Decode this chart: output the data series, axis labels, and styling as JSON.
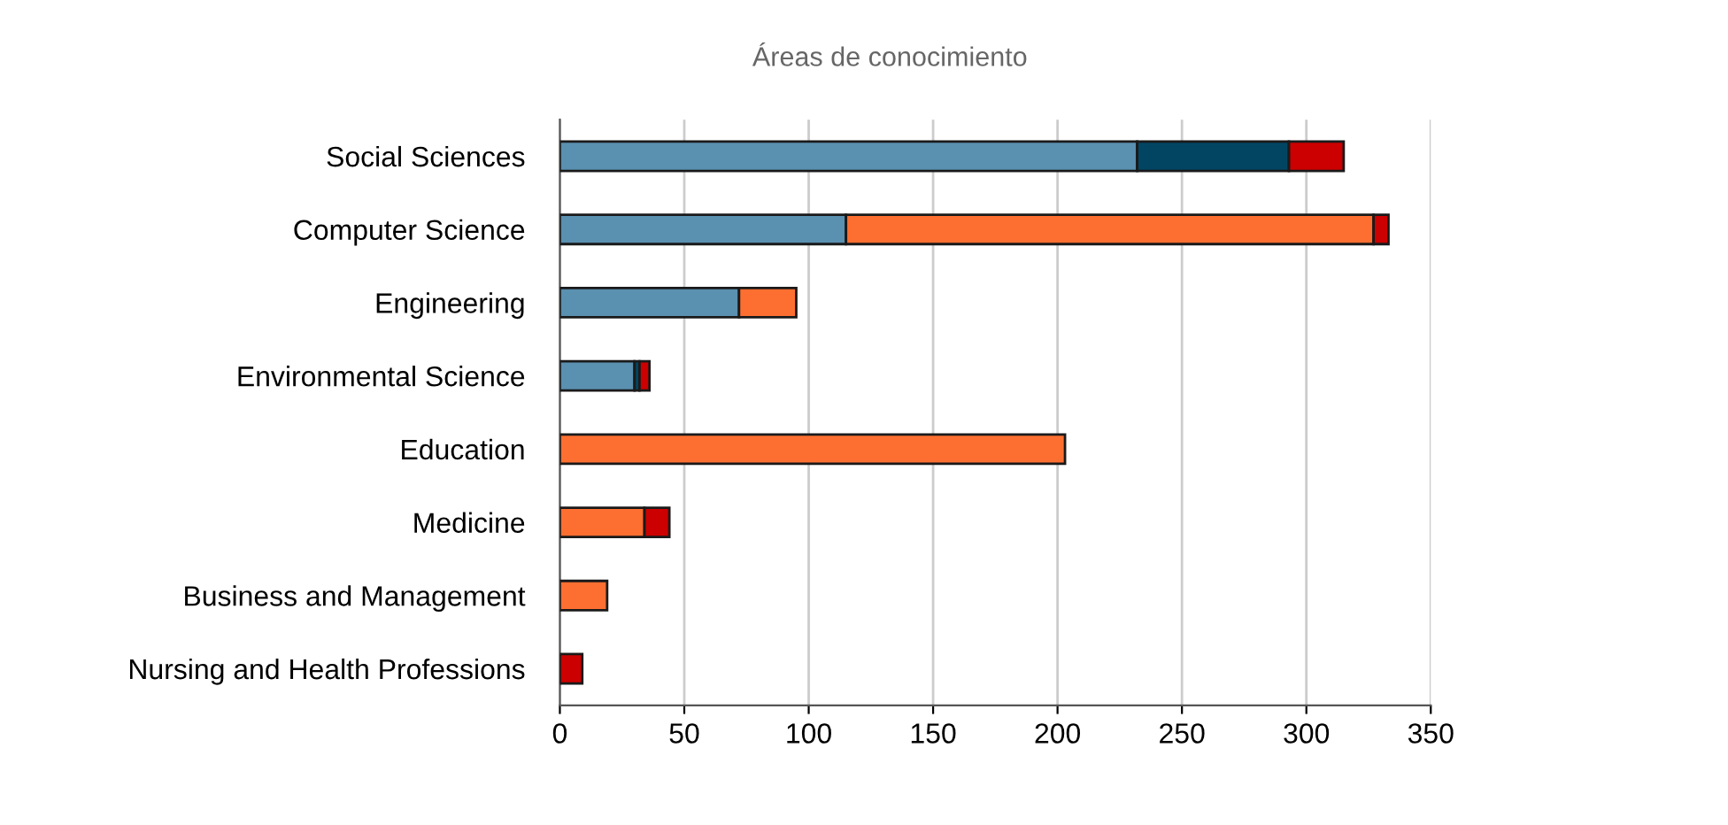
{
  "chart_data": {
    "type": "bar",
    "orientation": "horizontal",
    "stacked": true,
    "title": "Áreas de conocimiento",
    "categories": [
      "Social Sciences",
      "Computer Science",
      "Engineering",
      "Environmental Science",
      "Education",
      "Medicine",
      "Business and Management",
      "Nursing and Health Professions"
    ],
    "series": [
      {
        "color": "#5a90b0",
        "values": [
          232,
          115,
          72,
          30,
          null,
          null,
          null,
          null
        ]
      },
      {
        "color": "#024562",
        "values": [
          61,
          null,
          null,
          2,
          null,
          null,
          null,
          null
        ]
      },
      {
        "color": "#fd6f31",
        "values": [
          null,
          212,
          23,
          null,
          203,
          34,
          19,
          null
        ]
      },
      {
        "color": "#cc0000",
        "values": [
          22,
          6,
          null,
          4,
          null,
          10,
          null,
          9
        ]
      }
    ],
    "xlim": [
      0,
      350
    ],
    "xticks": [
      0,
      50,
      100,
      150,
      200,
      250,
      300,
      350
    ],
    "grid": "x"
  }
}
